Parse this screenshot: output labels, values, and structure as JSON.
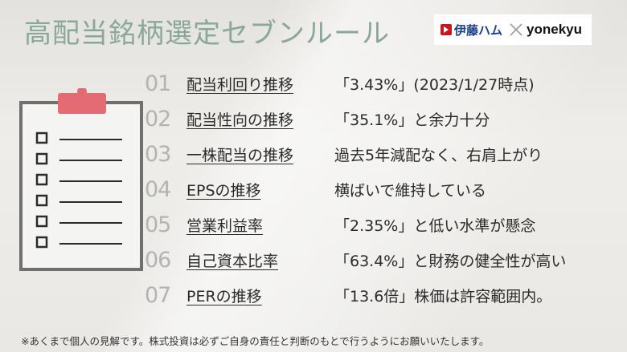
{
  "title": "高配当銘柄選定セブンルール",
  "logos": {
    "left": "伊藤ハム",
    "right": "yonekyu",
    "separator_icon": "cross-icon"
  },
  "rules": [
    {
      "num": "01",
      "label": "配当利回り推移",
      "desc": "「3.43%」(2023/1/27時点)"
    },
    {
      "num": "02",
      "label": "配当性向の推移",
      "desc": "「35.1%」と余力十分"
    },
    {
      "num": "03",
      "label": "一株配当の推移",
      "desc": "過去5年減配なく、右肩上がり"
    },
    {
      "num": "04",
      "label": "EPSの推移",
      "desc": "横ばいで維持している"
    },
    {
      "num": "05",
      "label": "営業利益率",
      "desc": "「2.35%」と低い水準が懸念"
    },
    {
      "num": "06",
      "label": "自己資本比率",
      "desc": "「63.4%」と財務の健全性が高い"
    },
    {
      "num": "07",
      "label": "PERの推移",
      "desc": "「13.6倍」株価は許容範囲内。"
    }
  ],
  "footnote": "※あくまで個人の見解です。株式投資は必ずご自身の責任と判断のもとで行うようにお願いいたします。",
  "colors": {
    "title": "#8aa79c",
    "number": "#b3b3b3",
    "clipboard_border": "#707070",
    "clip": "#e36b73",
    "itoham_red": "#c8161d",
    "itoham_blue": "#1b3f8f"
  }
}
